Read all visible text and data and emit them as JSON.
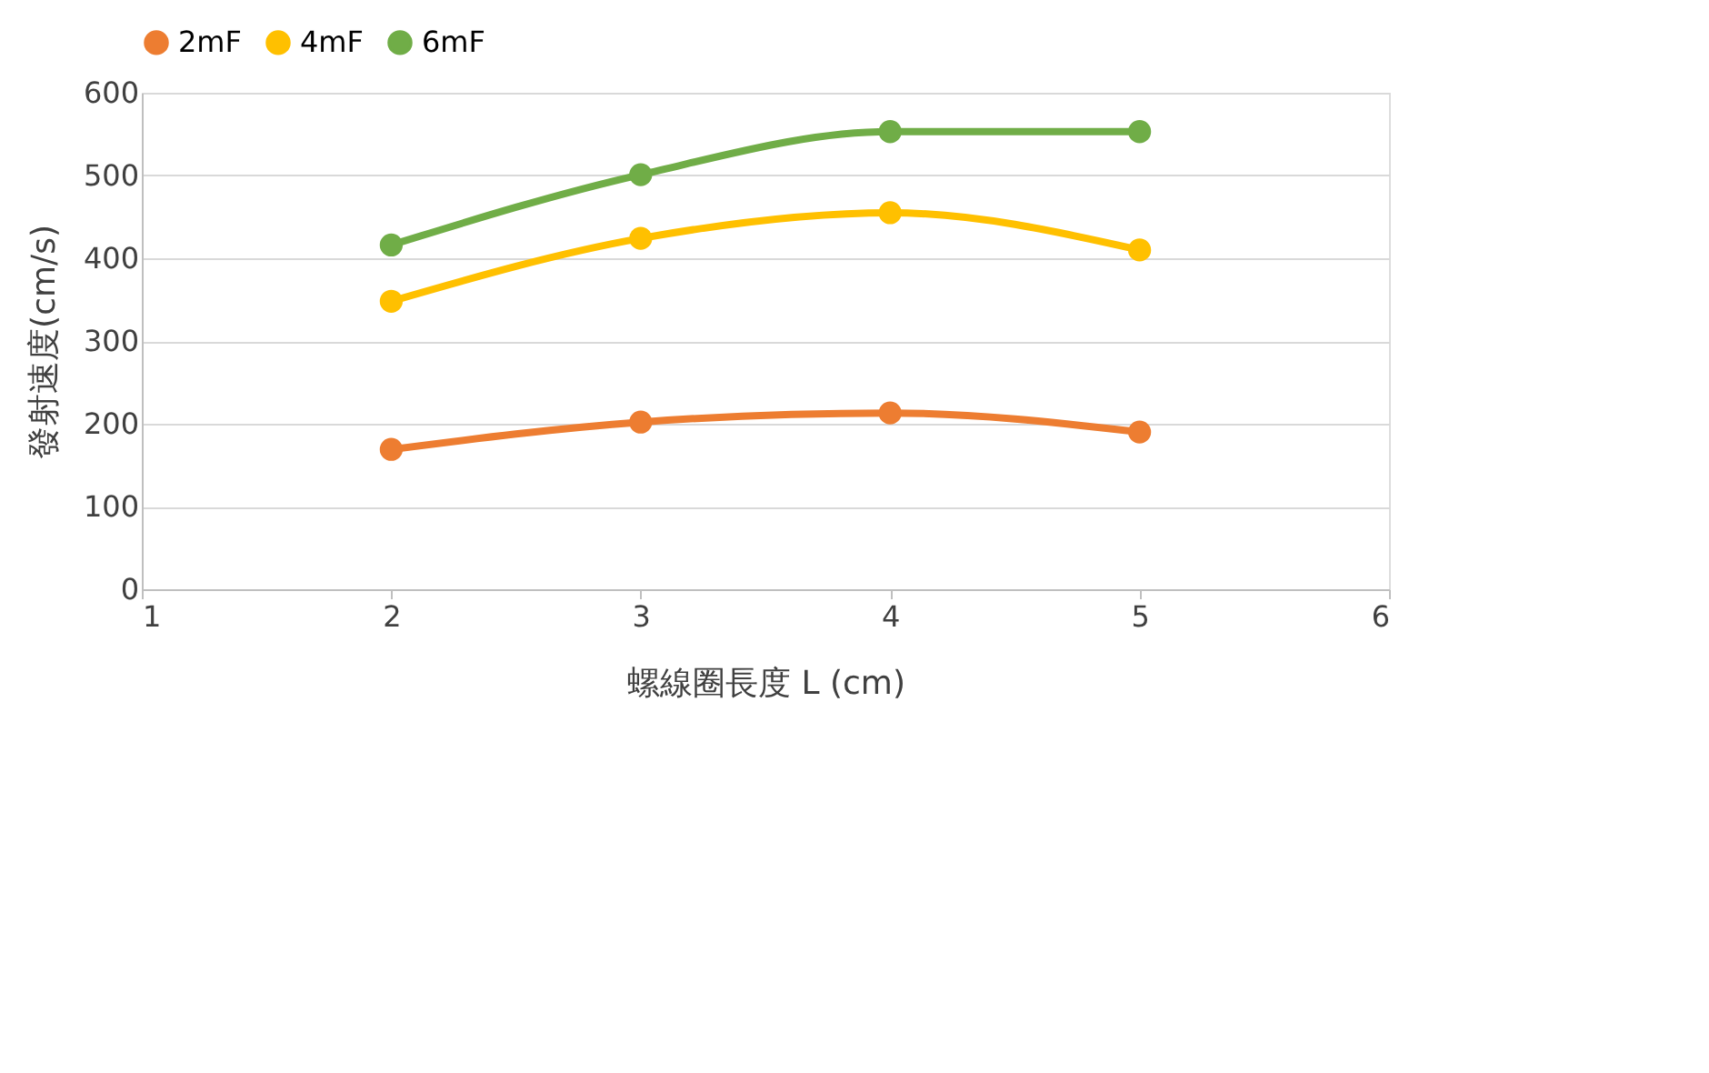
{
  "chart_data": {
    "type": "line",
    "xlabel": "螺線圈長度 L (cm)",
    "ylabel": "發射速度(cm/s)",
    "x": [
      2,
      3,
      4,
      5
    ],
    "series": [
      {
        "name": "2mF",
        "color": "#ed7d31",
        "values": [
          169,
          202,
          213,
          190
        ]
      },
      {
        "name": "4mF",
        "color": "#ffc000",
        "values": [
          348,
          424,
          455,
          410
        ]
      },
      {
        "name": "6mF",
        "color": "#70ad47",
        "values": [
          416,
          501,
          553,
          553
        ]
      }
    ],
    "xlim": [
      1,
      6
    ],
    "xticks": [
      1,
      2,
      3,
      4,
      5,
      6
    ],
    "ylim": [
      0,
      600
    ],
    "yticks": [
      0,
      100,
      200,
      300,
      400,
      500,
      600
    ],
    "grid": "y",
    "legend": "top",
    "marker": "circle",
    "line_style": "solid"
  }
}
